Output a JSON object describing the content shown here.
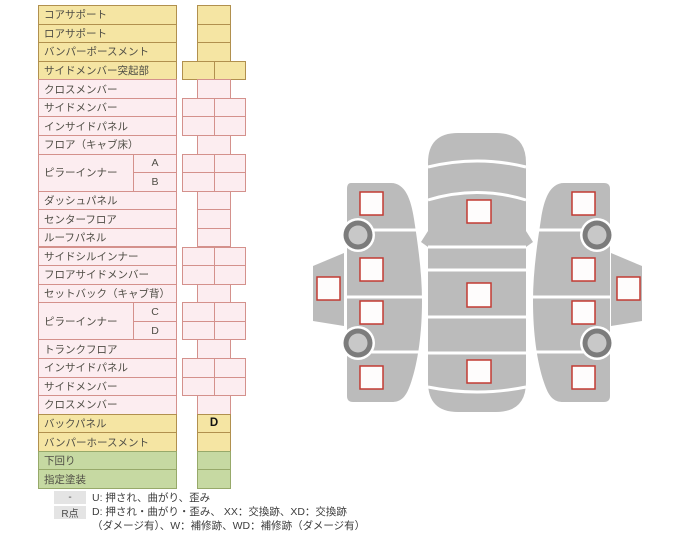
{
  "table": {
    "rows": [
      {
        "label": "コアサポート",
        "color": "yellow",
        "status": "single",
        "value": ""
      },
      {
        "label": "ロアサポート",
        "color": "yellow",
        "status": "single",
        "value": ""
      },
      {
        "label": "バンパーポースメント",
        "color": "yellow",
        "status": "single",
        "value": ""
      },
      {
        "label": "サイドメンバー突起部",
        "color": "yellow",
        "status": "double",
        "value": ""
      },
      {
        "label": "クロスメンバー",
        "color": "pink",
        "status": "single",
        "value": ""
      },
      {
        "label": "サイドメンバー",
        "color": "pink",
        "status": "double",
        "value": ""
      },
      {
        "label": "インサイドパネル",
        "color": "pink",
        "status": "double",
        "value": ""
      },
      {
        "label": "フロア（キャブ床）",
        "color": "pink",
        "status": "single",
        "value": ""
      },
      {
        "label": "ピラーインナー",
        "sub": "A",
        "rowspan": 2,
        "color": "pink",
        "status": "double",
        "value": ""
      },
      {
        "sub": "B",
        "color": "pink",
        "status": "double",
        "value": ""
      },
      {
        "label": "ダッシュパネル",
        "color": "pink",
        "status": "single",
        "value": ""
      },
      {
        "label": "センターフロア",
        "color": "pink",
        "status": "single",
        "value": ""
      },
      {
        "label": "ルーフパネル",
        "color": "pink",
        "status": "single",
        "value": ""
      },
      {
        "label": "サイドシルインナー",
        "color": "pink",
        "status": "double",
        "value": ""
      },
      {
        "label": "フロアサイドメンバー",
        "color": "pink",
        "status": "double",
        "value": ""
      },
      {
        "label": "セットバック（キャブ背）",
        "color": "pink",
        "status": "single",
        "value": ""
      },
      {
        "label": "ピラーインナー",
        "sub": "C",
        "rowspan": 2,
        "color": "pink",
        "status": "double",
        "value": ""
      },
      {
        "sub": "D",
        "color": "pink",
        "status": "double",
        "value": ""
      },
      {
        "label": "トランクフロア",
        "color": "pink",
        "status": "single",
        "value": ""
      },
      {
        "label": "インサイドパネル",
        "color": "pink",
        "status": "double",
        "value": ""
      },
      {
        "label": "サイドメンバー",
        "color": "pink",
        "status": "double",
        "value": ""
      },
      {
        "label": "クロスメンバー",
        "color": "pink",
        "status": "single",
        "value": ""
      },
      {
        "label": "バックパネル",
        "color": "yellow",
        "status": "single",
        "value": "D"
      },
      {
        "label": "バンパーホースメント",
        "color": "yellow",
        "status": "single",
        "value": ""
      },
      {
        "label": "下回り",
        "color": "green",
        "status": "single",
        "value": ""
      },
      {
        "label": "指定塗装",
        "color": "green",
        "status": "single",
        "value": ""
      }
    ]
  },
  "legend": {
    "badge1": "-",
    "line1": "U: 押され、曲がり、歪み",
    "badge2": "R点",
    "line2": "D: 押され・曲がり・歪み、 XX：交換跡、XD：交換跡",
    "line3": "（ダメージ有）、W：補修跡、WD：補修跡（ダメージ有）"
  },
  "diagram": {
    "views": [
      {
        "name": "left-side-view",
        "markers": 5,
        "wheels": 2
      },
      {
        "name": "top-view",
        "markers": 3,
        "wheels": 0
      },
      {
        "name": "right-side-view",
        "markers": 5,
        "wheels": 2
      }
    ],
    "marker_state": "empty"
  },
  "colors": {
    "yellow_bg": "#f5e5a3",
    "yellow_border": "#b1904e",
    "pink_bg": "#fcedf0",
    "pink_border": "#d4918c",
    "green_bg": "#c6d9a2",
    "green_border": "#97a96a",
    "marker_border": "#c23b33",
    "body_gray": "#bbbbbb",
    "wheel_dark": "#7c7c7c",
    "wheel_inner": "#c8c8c8"
  }
}
